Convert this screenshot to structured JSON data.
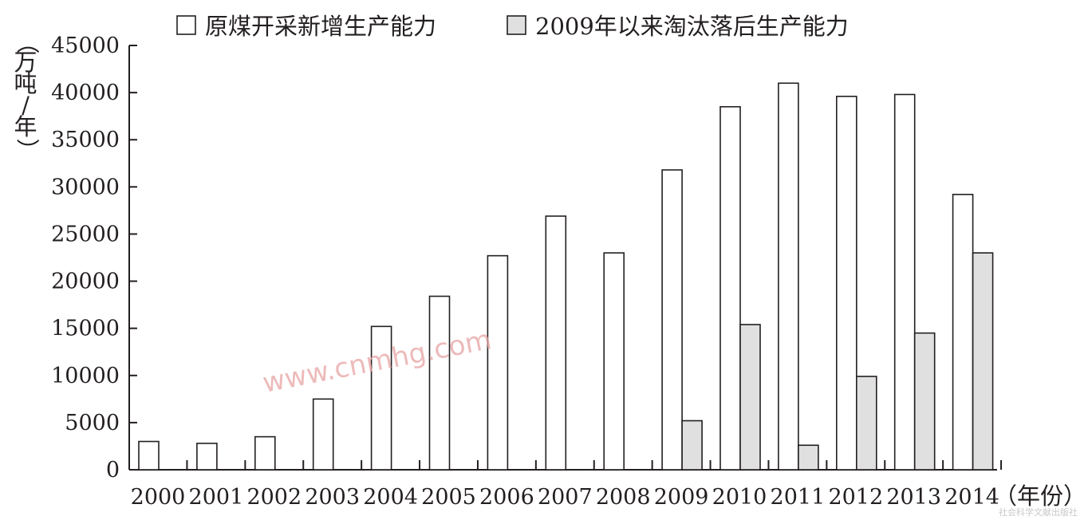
{
  "chart_data": {
    "type": "bar",
    "categories": [
      "2000",
      "2001",
      "2002",
      "2003",
      "2004",
      "2005",
      "2006",
      "2007",
      "2008",
      "2009",
      "2010",
      "2011",
      "2012",
      "2013",
      "2014"
    ],
    "series": [
      {
        "name": "原煤开采新增生产能力",
        "color": "#ffffff",
        "values": [
          3000,
          2800,
          3500,
          7500,
          15200,
          18400,
          22700,
          26900,
          23000,
          31800,
          38500,
          41000,
          39600,
          39800,
          29200
        ]
      },
      {
        "name": "2009年以来淘汰落后生产能力",
        "color": "#e0e0e0",
        "values": [
          null,
          null,
          null,
          null,
          null,
          null,
          null,
          null,
          null,
          5200,
          15400,
          2600,
          9900,
          14500,
          23000
        ]
      }
    ],
    "ylim": [
      0,
      45000
    ],
    "yticks": [
      "0",
      "5000",
      "10000",
      "15000",
      "20000",
      "25000",
      "30000",
      "35000",
      "40000",
      "45000"
    ],
    "ylabel": "（万吨/年）",
    "ylabel_chars": [
      "（",
      "万",
      "吨",
      "/",
      "年",
      "）"
    ],
    "xlabel": "（年份）",
    "legend_position": "top",
    "grid": false
  },
  "watermark": "www.cnmhg.com",
  "credit": "社会科学文献出版社"
}
